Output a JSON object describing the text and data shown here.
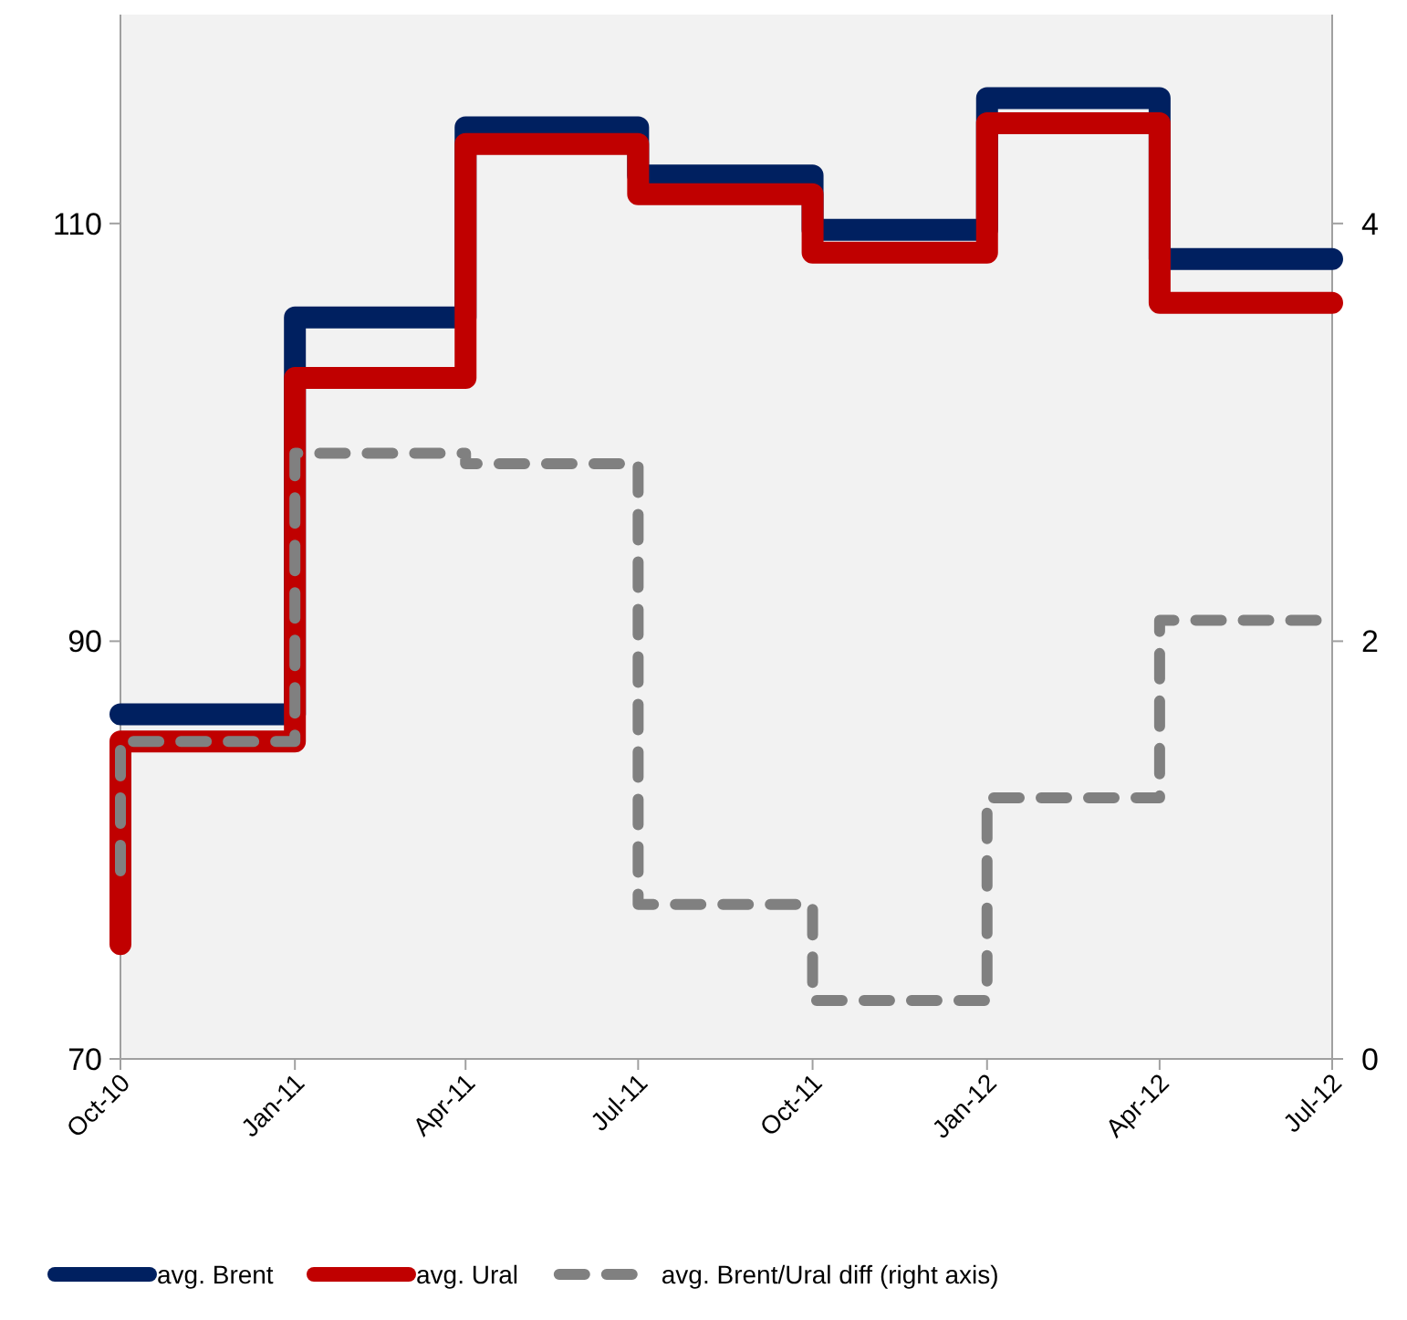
{
  "chart_data": {
    "type": "step",
    "x": [
      "2010-10",
      "2011-01",
      "2011-04",
      "2011-07",
      "2011-10",
      "2012-01",
      "2012-04",
      "2012-07"
    ],
    "series": [
      {
        "name": "avg. Brent",
        "color": "#002060",
        "values": [
          86.5,
          86.5,
          105.5,
          114.6,
          112.3,
          109.7,
          116.0,
          108.3
        ]
      },
      {
        "name": "avg. Ural",
        "color": "#c00000",
        "values": [
          75.5,
          85.2,
          102.6,
          113.8,
          111.4,
          108.6,
          114.8,
          106.2
        ]
      },
      {
        "name": "avg. Brent/Ural diff (right axis)",
        "color": "#808080",
        "axis": "y2",
        "line_style": "dashed",
        "values": [
          0.9,
          1.52,
          2.9,
          2.85,
          0.74,
          0.28,
          1.25,
          2.1
        ]
      }
    ],
    "xlim": [
      "2010-10",
      "2012-07"
    ],
    "xticks": [
      {
        "value": "2010-10",
        "label": "Oct-10"
      },
      {
        "value": "2011-01",
        "label": "Jan-11"
      },
      {
        "value": "2011-04",
        "label": "Apr-11"
      },
      {
        "value": "2011-07",
        "label": "Jul-11"
      },
      {
        "value": "2011-10",
        "label": "Oct-11"
      },
      {
        "value": "2012-01",
        "label": "Jan-12"
      },
      {
        "value": "2012-04",
        "label": "Apr-12"
      },
      {
        "value": "2012-07",
        "label": "Jul-12"
      }
    ],
    "ylim": [
      70,
      120
    ],
    "yticks": [
      70,
      90,
      110
    ],
    "y2lim": [
      0,
      5
    ],
    "y2ticks": [
      0,
      2,
      4
    ],
    "grid": false,
    "legend": "bottom",
    "line_style": "solid"
  }
}
